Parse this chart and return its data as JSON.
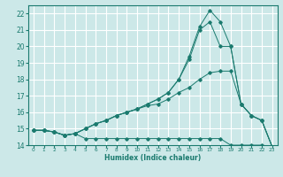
{
  "xlabel": "Humidex (Indice chaleur)",
  "bg_color": "#cce8e8",
  "grid_color": "#ffffff",
  "line_color": "#1a7a6e",
  "xlim": [
    -0.5,
    23.5
  ],
  "ylim": [
    14,
    22.5
  ],
  "yticks": [
    14,
    15,
    16,
    17,
    18,
    19,
    20,
    21,
    22
  ],
  "xticks": [
    0,
    1,
    2,
    3,
    4,
    5,
    6,
    7,
    8,
    9,
    10,
    11,
    12,
    13,
    14,
    15,
    16,
    17,
    18,
    19,
    20,
    21,
    22,
    23
  ],
  "series": [
    {
      "x": [
        0,
        1,
        2,
        3,
        4,
        5,
        6,
        7,
        8,
        9,
        10,
        11,
        12,
        13,
        14,
        15,
        16,
        17,
        18,
        19,
        20,
        21,
        22,
        23
      ],
      "y": [
        14.9,
        14.9,
        14.8,
        14.6,
        14.7,
        14.4,
        14.4,
        14.4,
        14.4,
        14.4,
        14.4,
        14.4,
        14.4,
        14.4,
        14.4,
        14.4,
        14.4,
        14.4,
        14.4,
        14.0,
        14.0,
        14.0,
        14.0,
        13.9
      ]
    },
    {
      "x": [
        0,
        1,
        2,
        3,
        4,
        5,
        6,
        7,
        8,
        9,
        10,
        11,
        12,
        13,
        14,
        15,
        16,
        17,
        18,
        19,
        20,
        21,
        22,
        23
      ],
      "y": [
        14.9,
        14.9,
        14.8,
        14.6,
        14.7,
        15.0,
        15.3,
        15.5,
        15.8,
        16.0,
        16.2,
        16.4,
        16.5,
        16.8,
        17.2,
        17.5,
        18.0,
        18.4,
        18.5,
        18.5,
        16.5,
        15.8,
        15.5,
        13.9
      ]
    },
    {
      "x": [
        0,
        1,
        2,
        3,
        4,
        5,
        6,
        7,
        8,
        9,
        10,
        11,
        12,
        13,
        14,
        15,
        16,
        17,
        18,
        19,
        20,
        21,
        22,
        23
      ],
      "y": [
        14.9,
        14.9,
        14.8,
        14.6,
        14.7,
        15.0,
        15.3,
        15.5,
        15.8,
        16.0,
        16.2,
        16.5,
        16.8,
        17.2,
        18.0,
        19.2,
        21.0,
        21.5,
        20.0,
        20.0,
        16.5,
        15.8,
        15.5,
        13.9
      ]
    },
    {
      "x": [
        0,
        1,
        2,
        3,
        4,
        5,
        6,
        7,
        8,
        9,
        10,
        11,
        12,
        13,
        14,
        15,
        16,
        17,
        18,
        19,
        20,
        21,
        22,
        23
      ],
      "y": [
        14.9,
        14.9,
        14.8,
        14.6,
        14.7,
        15.0,
        15.3,
        15.5,
        15.8,
        16.0,
        16.2,
        16.5,
        16.8,
        17.2,
        18.0,
        19.4,
        21.2,
        22.2,
        21.5,
        20.0,
        16.5,
        15.8,
        15.5,
        13.9
      ]
    }
  ]
}
